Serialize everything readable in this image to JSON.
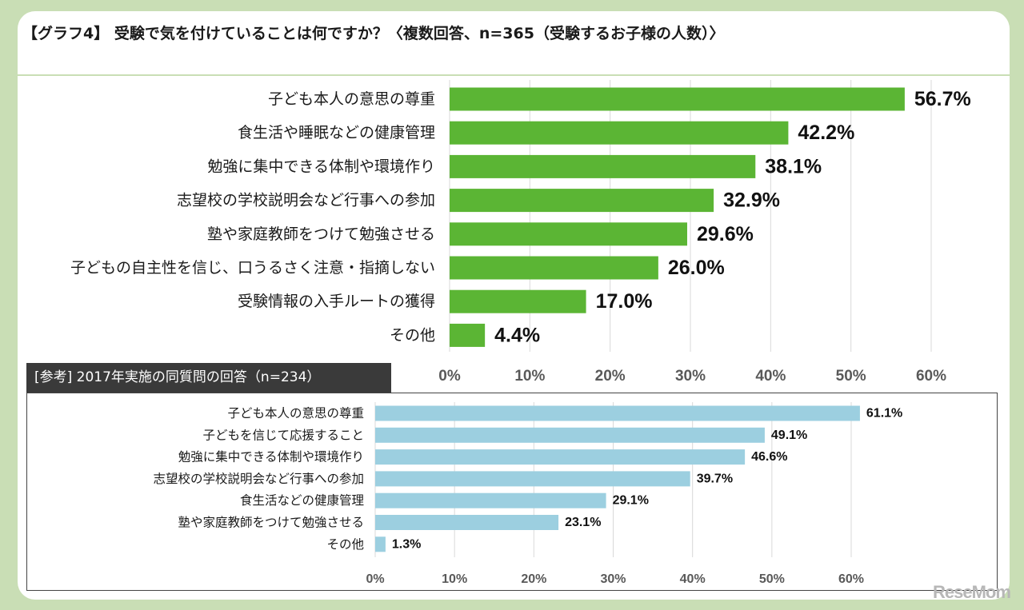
{
  "header": {
    "title": "【グラフ4】 受験で気を付けていることは何ですか？〈複数回答、n=365（受験するお子様の人数）〉"
  },
  "reference": {
    "title": "[参考] 2017年実施の同質問の回答（n=234）"
  },
  "logo": {
    "text": "ReseMom"
  },
  "colors": {
    "main_bar": "#5bb534",
    "ref_bar": "#9ccfe0",
    "background": "#c9deb5"
  },
  "chart_data": [
    {
      "type": "bar",
      "orientation": "horizontal",
      "categories": [
        "子ども本人の意思の尊重",
        "食生活や睡眠などの健康管理",
        "勉強に集中できる体制や環境作り",
        "志望校の学校説明会など行事への参加",
        "塾や家庭教師をつけて勉強させる",
        "子どもの自主性を信じ、口うるさく注意・指摘しない",
        "受験情報の入手ルートの獲得",
        "その他"
      ],
      "values": [
        56.7,
        42.2,
        38.1,
        32.9,
        29.6,
        26.0,
        17.0,
        4.4
      ],
      "value_labels": [
        "56.7%",
        "42.2%",
        "38.1%",
        "32.9%",
        "29.6%",
        "26.0%",
        "17.0%",
        "4.4%"
      ],
      "x_ticks": [
        "0%",
        "10%",
        "20%",
        "30%",
        "40%",
        "50%",
        "60%"
      ],
      "xlim": [
        0,
        60
      ],
      "grid": true
    },
    {
      "type": "bar",
      "orientation": "horizontal",
      "categories": [
        "子ども本人の意思の尊重",
        "子どもを信じて応援すること",
        "勉強に集中できる体制や環境作り",
        "志望校の学校説明会など行事への参加",
        "食生活などの健康管理",
        "塾や家庭教師をつけて勉強させる",
        "その他"
      ],
      "values": [
        61.1,
        49.1,
        46.6,
        39.7,
        29.1,
        23.1,
        1.3
      ],
      "value_labels": [
        "61.1%",
        "49.1%",
        "46.6%",
        "39.7%",
        "29.1%",
        "23.1%",
        "1.3%"
      ],
      "x_ticks": [
        "0%",
        "10%",
        "20%",
        "30%",
        "40%",
        "50%",
        "60%"
      ],
      "xlim": [
        0,
        60
      ],
      "grid": true
    }
  ]
}
